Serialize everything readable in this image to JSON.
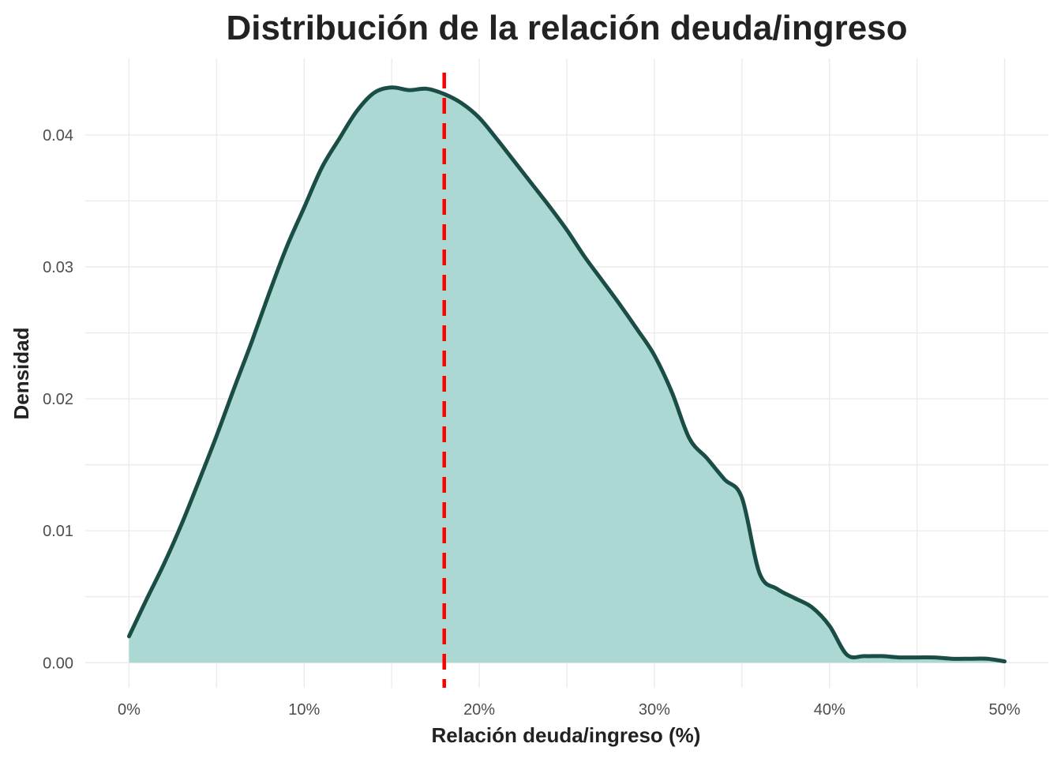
{
  "chart_data": {
    "type": "area",
    "title": "Distribución de la relación deuda/ingreso",
    "xlabel": "Relación deuda/ingreso (%)",
    "ylabel": "Densidad",
    "xlim": [
      -2.5,
      52.5
    ],
    "ylim": [
      -0.0019,
      0.0458
    ],
    "x_ticks": [
      0,
      10,
      20,
      30,
      40,
      50
    ],
    "x_tick_labels": [
      "0%",
      "10%",
      "20%",
      "30%",
      "40%",
      "50%"
    ],
    "y_ticks": [
      0,
      0.01,
      0.02,
      0.03,
      0.04
    ],
    "y_tick_labels": [
      "0.00",
      "0.01",
      "0.02",
      "0.03",
      "0.04"
    ],
    "grid": true,
    "legend": "none",
    "series": [
      {
        "x": [
          0,
          1,
          2,
          3,
          4,
          5,
          6,
          7,
          8,
          9,
          10,
          11,
          12,
          13,
          14,
          15,
          16,
          17,
          18,
          19,
          20,
          21,
          22,
          23,
          24,
          25,
          26,
          27,
          28,
          29,
          30,
          31,
          32,
          33,
          34,
          35,
          36,
          37,
          38,
          39,
          40,
          41,
          42,
          43,
          44,
          45,
          46,
          47,
          48,
          49,
          50
        ],
        "y": [
          0.002,
          0.0048,
          0.0075,
          0.0105,
          0.0138,
          0.0172,
          0.0208,
          0.0243,
          0.028,
          0.0315,
          0.0345,
          0.0375,
          0.0397,
          0.0418,
          0.0432,
          0.0436,
          0.0434,
          0.0435,
          0.0431,
          0.0424,
          0.0413,
          0.0397,
          0.038,
          0.0363,
          0.0346,
          0.0328,
          0.0308,
          0.029,
          0.0272,
          0.0253,
          0.0233,
          0.0205,
          0.017,
          0.0155,
          0.0139,
          0.0125,
          0.0068,
          0.0056,
          0.0049,
          0.0042,
          0.0028,
          0.0006,
          0.0005,
          0.0005,
          0.0004,
          0.0004,
          0.0004,
          0.0003,
          0.0003,
          0.0003,
          0.0001
        ],
        "fill_color": "#acd8d4",
        "line_color": "#1b4d47"
      }
    ],
    "reference_line": {
      "x": 18,
      "color": "#ff0000",
      "style": "dashed"
    }
  }
}
